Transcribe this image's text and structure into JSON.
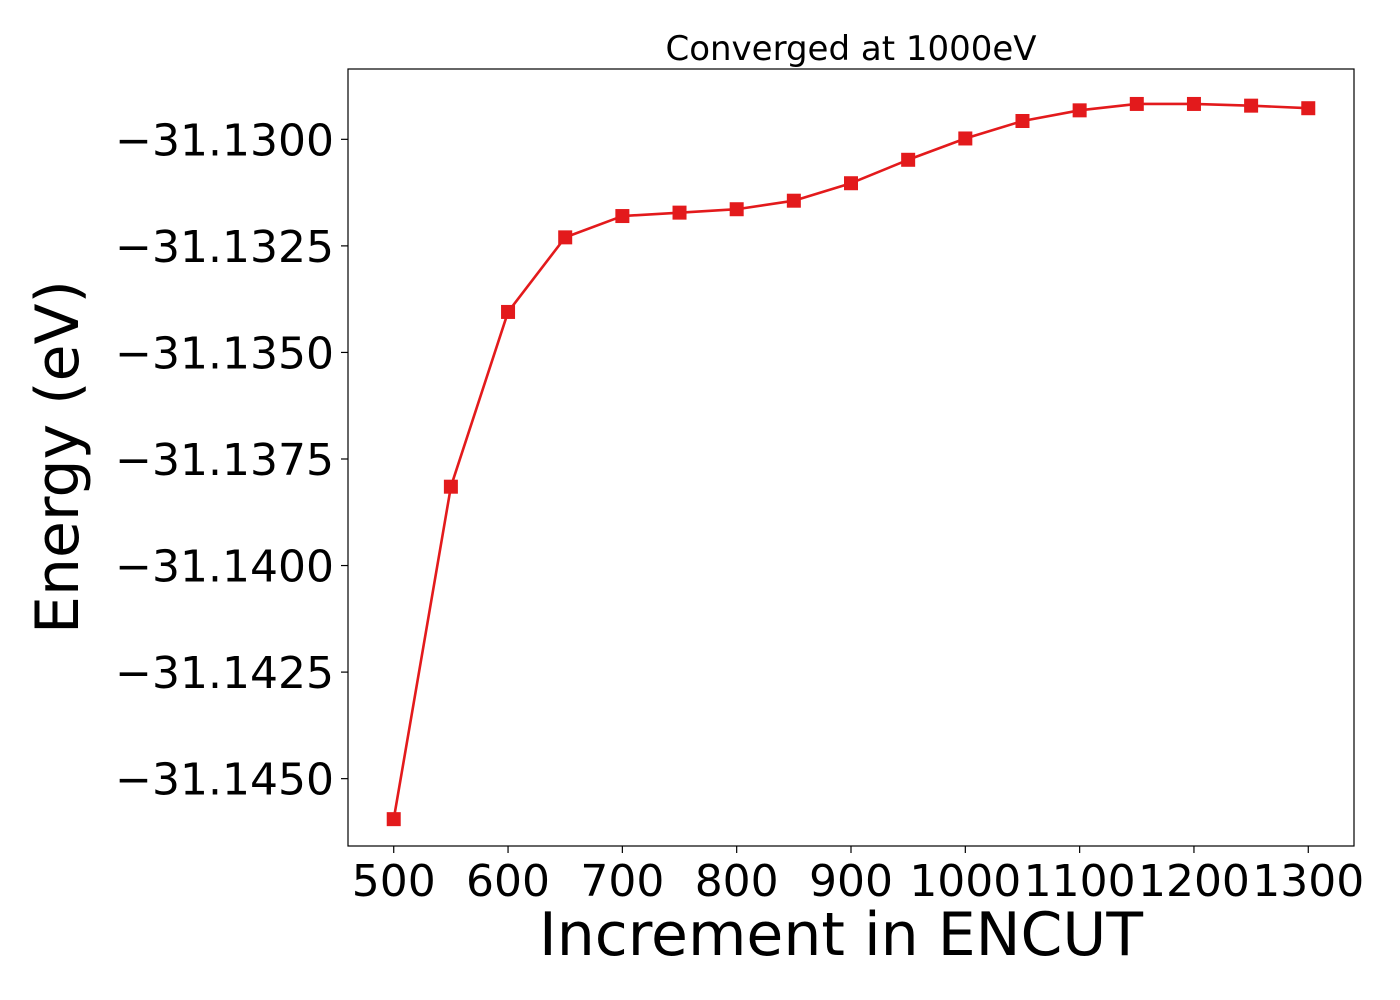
{
  "chart_data": {
    "type": "line",
    "title": "Converged at 1000eV",
    "xlabel": "Increment in ENCUT",
    "ylabel": "Energy (eV)",
    "x": [
      500,
      550,
      600,
      650,
      700,
      750,
      800,
      850,
      900,
      950,
      1000,
      1050,
      1100,
      1150,
      1200,
      1250,
      1300
    ],
    "series": [
      {
        "values": [
          -31.14595,
          -31.13815,
          -31.13405,
          -31.1323,
          -31.1318,
          -31.13172,
          -31.13164,
          -31.13144,
          -31.13103,
          -31.13048,
          -31.12998,
          -31.12957,
          -31.12932,
          -31.12917,
          -31.12917,
          -31.12921,
          -31.12927
        ],
        "color": "#e31a1c",
        "marker": "square"
      }
    ],
    "xticks": [
      500,
      600,
      700,
      800,
      900,
      1000,
      1100,
      1200,
      1300
    ],
    "xtick_labels": [
      "500",
      "600",
      "700",
      "800",
      "900",
      "1000",
      "1100",
      "1200",
      "1300"
    ],
    "yticks": [
      -31.145,
      -31.1425,
      -31.14,
      -31.1375,
      -31.135,
      -31.1325,
      -31.13
    ],
    "ytick_labels": [
      "−31.1450",
      "−31.1425",
      "−31.1400",
      "−31.1375",
      "−31.1350",
      "−31.1325",
      "−31.1300"
    ],
    "xlim": [
      460,
      1340
    ],
    "ylim": [
      -31.14658,
      -31.12835
    ],
    "grid": false,
    "legend": "none"
  }
}
